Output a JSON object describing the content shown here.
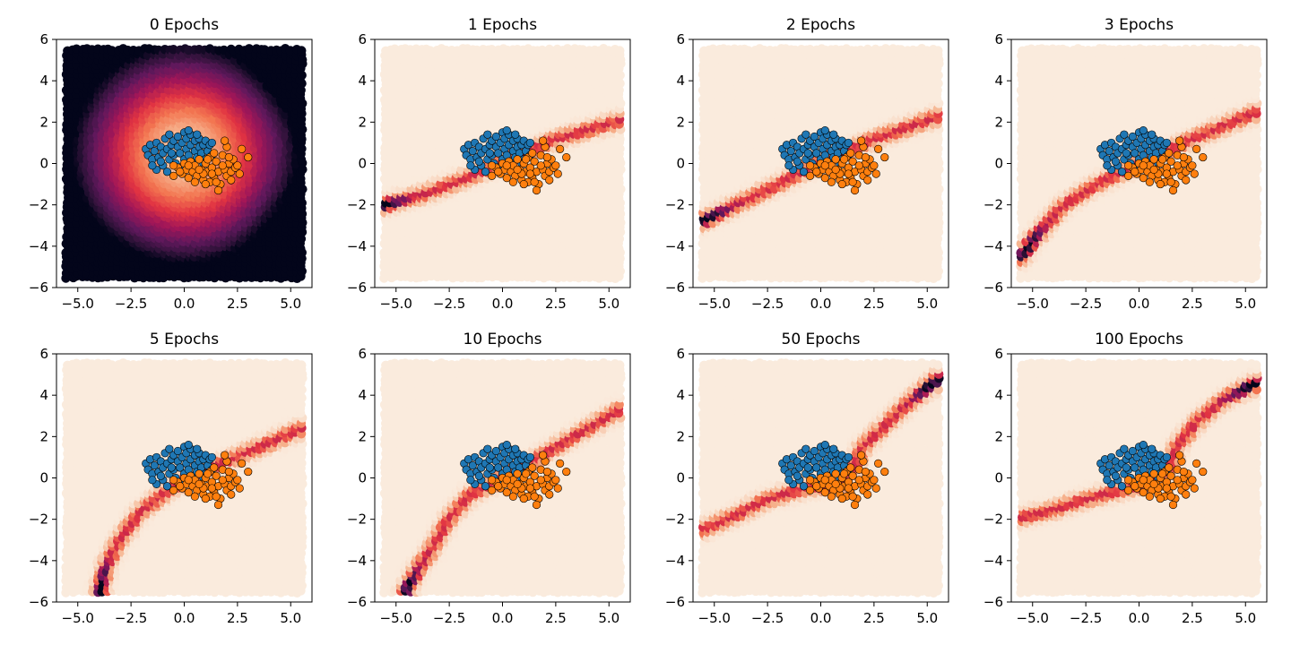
{
  "chart_data": {
    "type": "scatter",
    "layout": "2x4 grid",
    "xlim": [
      -6,
      6
    ],
    "ylim": [
      -6,
      6
    ],
    "xticks": [
      "−5.0",
      "−2.5",
      "0.0",
      "2.5",
      "5.0"
    ],
    "yticks": [
      "6",
      "4",
      "2",
      "0",
      "−2",
      "−4",
      "−6"
    ],
    "grid": false,
    "legend": "none",
    "colors": {
      "class0": "#1f77b4",
      "class1": "#ff7f0e",
      "point_edge": "#000000",
      "background_low": "#faebdd",
      "colormap_high": "#03051a"
    },
    "panels": [
      {
        "title": "0 Epochs",
        "density": "initial_blob"
      },
      {
        "title": "1 Epochs",
        "density": "curve",
        "curve": [
          [
            -5.6,
            -2.0
          ],
          [
            -3.5,
            -1.4
          ],
          [
            -1.5,
            -0.6
          ],
          [
            0.5,
            0.3
          ],
          [
            2.5,
            1.2
          ],
          [
            5.5,
            2.1
          ]
        ],
        "peak": [
          -5.6,
          -2.0
        ]
      },
      {
        "title": "2 Epochs",
        "density": "curve",
        "curve": [
          [
            -5.6,
            -2.8
          ],
          [
            -4.0,
            -2.0
          ],
          [
            -2.0,
            -1.0
          ],
          [
            0.0,
            0.1
          ],
          [
            2.5,
            1.2
          ],
          [
            5.5,
            2.3
          ]
        ],
        "peak": [
          -5.3,
          -2.5
        ]
      },
      {
        "title": "3 Epochs",
        "density": "curve",
        "curve": [
          [
            -5.5,
            -4.5
          ],
          [
            -4.8,
            -3.5
          ],
          [
            -3.5,
            -2.0
          ],
          [
            -2.0,
            -1.0
          ],
          [
            0.0,
            0.0
          ],
          [
            2.5,
            1.2
          ],
          [
            5.5,
            2.5
          ]
        ],
        "peak": [
          -5.2,
          -4.0
        ]
      },
      {
        "title": "5 Epochs",
        "density": "curve",
        "curve": [
          [
            -3.9,
            -5.5
          ],
          [
            -3.6,
            -4.2
          ],
          [
            -3.0,
            -3.0
          ],
          [
            -2.0,
            -1.6
          ],
          [
            -0.5,
            -0.4
          ],
          [
            1.5,
            0.6
          ],
          [
            5.5,
            2.4
          ]
        ],
        "peak": [
          -3.8,
          -5.3
        ]
      },
      {
        "title": "10 Epochs",
        "density": "curve",
        "curve": [
          [
            -4.5,
            -5.5
          ],
          [
            -4.0,
            -4.5
          ],
          [
            -3.2,
            -3.3
          ],
          [
            -2.5,
            -2.0
          ],
          [
            -1.5,
            -0.8
          ],
          [
            0.5,
            0.3
          ],
          [
            3.0,
            1.8
          ],
          [
            5.5,
            3.3
          ]
        ],
        "peak": [
          -4.4,
          -5.3
        ]
      },
      {
        "title": "50 Epochs",
        "density": "curve",
        "curve": [
          [
            -5.6,
            -2.5
          ],
          [
            -4.0,
            -1.8
          ],
          [
            -2.5,
            -1.0
          ],
          [
            -0.5,
            -0.4
          ],
          [
            1.0,
            -0.3
          ],
          [
            1.6,
            0.5
          ],
          [
            2.0,
            1.5
          ],
          [
            3.0,
            2.5
          ],
          [
            4.0,
            3.5
          ],
          [
            5.5,
            4.8
          ]
        ],
        "peak": [
          5.3,
          4.6
        ]
      },
      {
        "title": "100 Epochs",
        "density": "curve",
        "curve": [
          [
            -5.6,
            -1.9
          ],
          [
            -4.0,
            -1.5
          ],
          [
            -2.5,
            -1.0
          ],
          [
            -1.0,
            -0.6
          ],
          [
            0.5,
            -0.2
          ],
          [
            1.4,
            0.3
          ],
          [
            1.8,
            1.5
          ],
          [
            2.8,
            2.8
          ],
          [
            4.0,
            3.8
          ],
          [
            5.5,
            4.6
          ]
        ],
        "peak": [
          5.3,
          4.6
        ]
      }
    ],
    "blue_points": [
      [
        -1.8,
        0.7
      ],
      [
        -1.7,
        0.4
      ],
      [
        -1.6,
        0.9
      ],
      [
        -1.5,
        0.2
      ],
      [
        -1.4,
        0.6
      ],
      [
        -1.3,
        -0.3
      ],
      [
        -1.3,
        1.0
      ],
      [
        -1.2,
        0.3
      ],
      [
        -1.1,
        0.8
      ],
      [
        -1.0,
        0.5
      ],
      [
        -1.0,
        -0.1
      ],
      [
        -0.9,
        1.2
      ],
      [
        -0.8,
        0.7
      ],
      [
        -0.7,
        0.2
      ],
      [
        -0.7,
        1.4
      ],
      [
        -0.6,
        0.9
      ],
      [
        -0.5,
        0.4
      ],
      [
        -0.5,
        1.1
      ],
      [
        -0.4,
        0.0
      ],
      [
        -0.3,
        0.8
      ],
      [
        -0.3,
        1.3
      ],
      [
        -0.2,
        0.5
      ],
      [
        -0.1,
        1.0
      ],
      [
        0.0,
        0.2
      ],
      [
        0.0,
        1.5
      ],
      [
        0.1,
        0.7
      ],
      [
        0.1,
        1.2
      ],
      [
        0.2,
        0.4
      ],
      [
        0.3,
        0.9
      ],
      [
        0.3,
        1.4
      ],
      [
        0.4,
        0.1
      ],
      [
        0.5,
        0.6
      ],
      [
        0.5,
        1.1
      ],
      [
        0.6,
        0.3
      ],
      [
        0.7,
        0.8
      ],
      [
        0.7,
        1.2
      ],
      [
        0.8,
        0.5
      ],
      [
        0.9,
        0.9
      ],
      [
        1.0,
        0.2
      ],
      [
        1.0,
        1.1
      ],
      [
        1.1,
        0.6
      ],
      [
        1.2,
        0.9
      ],
      [
        1.3,
        0.4
      ],
      [
        -0.8,
        -0.4
      ],
      [
        -0.2,
        -0.2
      ],
      [
        0.2,
        1.6
      ],
      [
        -1.5,
        -0.1
      ],
      [
        0.9,
        0.0
      ],
      [
        -0.6,
        0.5
      ],
      [
        0.6,
        1.4
      ],
      [
        1.3,
        1.0
      ],
      [
        -1.1,
        0.1
      ]
    ],
    "orange_points": [
      [
        -0.5,
        -0.6
      ],
      [
        -0.3,
        -0.2
      ],
      [
        -0.1,
        -0.5
      ],
      [
        0.0,
        0.0
      ],
      [
        0.1,
        -0.3
      ],
      [
        0.2,
        -0.7
      ],
      [
        0.3,
        0.1
      ],
      [
        0.4,
        -0.4
      ],
      [
        0.5,
        -0.1
      ],
      [
        0.6,
        -0.6
      ],
      [
        0.7,
        0.2
      ],
      [
        0.8,
        -0.3
      ],
      [
        0.9,
        -0.8
      ],
      [
        1.0,
        0.0
      ],
      [
        1.1,
        -0.4
      ],
      [
        1.2,
        0.3
      ],
      [
        1.3,
        -0.2
      ],
      [
        1.4,
        -0.7
      ],
      [
        1.5,
        0.1
      ],
      [
        1.6,
        -0.4
      ],
      [
        1.7,
        -1.0
      ],
      [
        1.8,
        0.4
      ],
      [
        1.9,
        -0.3
      ],
      [
        2.0,
        -0.6
      ],
      [
        2.0,
        0.8
      ],
      [
        2.1,
        0.0
      ],
      [
        2.2,
        -0.4
      ],
      [
        2.3,
        0.2
      ],
      [
        2.4,
        -0.2
      ],
      [
        2.6,
        -0.5
      ],
      [
        2.7,
        0.7
      ],
      [
        3.0,
        0.3
      ],
      [
        1.6,
        -1.3
      ],
      [
        1.2,
        -0.9
      ],
      [
        -0.5,
        -0.1
      ],
      [
        0.5,
        -0.9
      ],
      [
        0.9,
        -0.5
      ],
      [
        1.4,
        0.5
      ],
      [
        1.8,
        -0.1
      ],
      [
        2.2,
        -0.8
      ],
      [
        1.0,
        -1.0
      ],
      [
        1.9,
        1.1
      ],
      [
        2.5,
        -0.1
      ],
      [
        1.3,
        -0.5
      ],
      [
        0.2,
        -0.1
      ],
      [
        0.7,
        -0.3
      ],
      [
        -0.2,
        -0.4
      ],
      [
        2.1,
        0.3
      ],
      [
        1.5,
        -0.9
      ],
      [
        1.1,
        0.2
      ]
    ]
  }
}
